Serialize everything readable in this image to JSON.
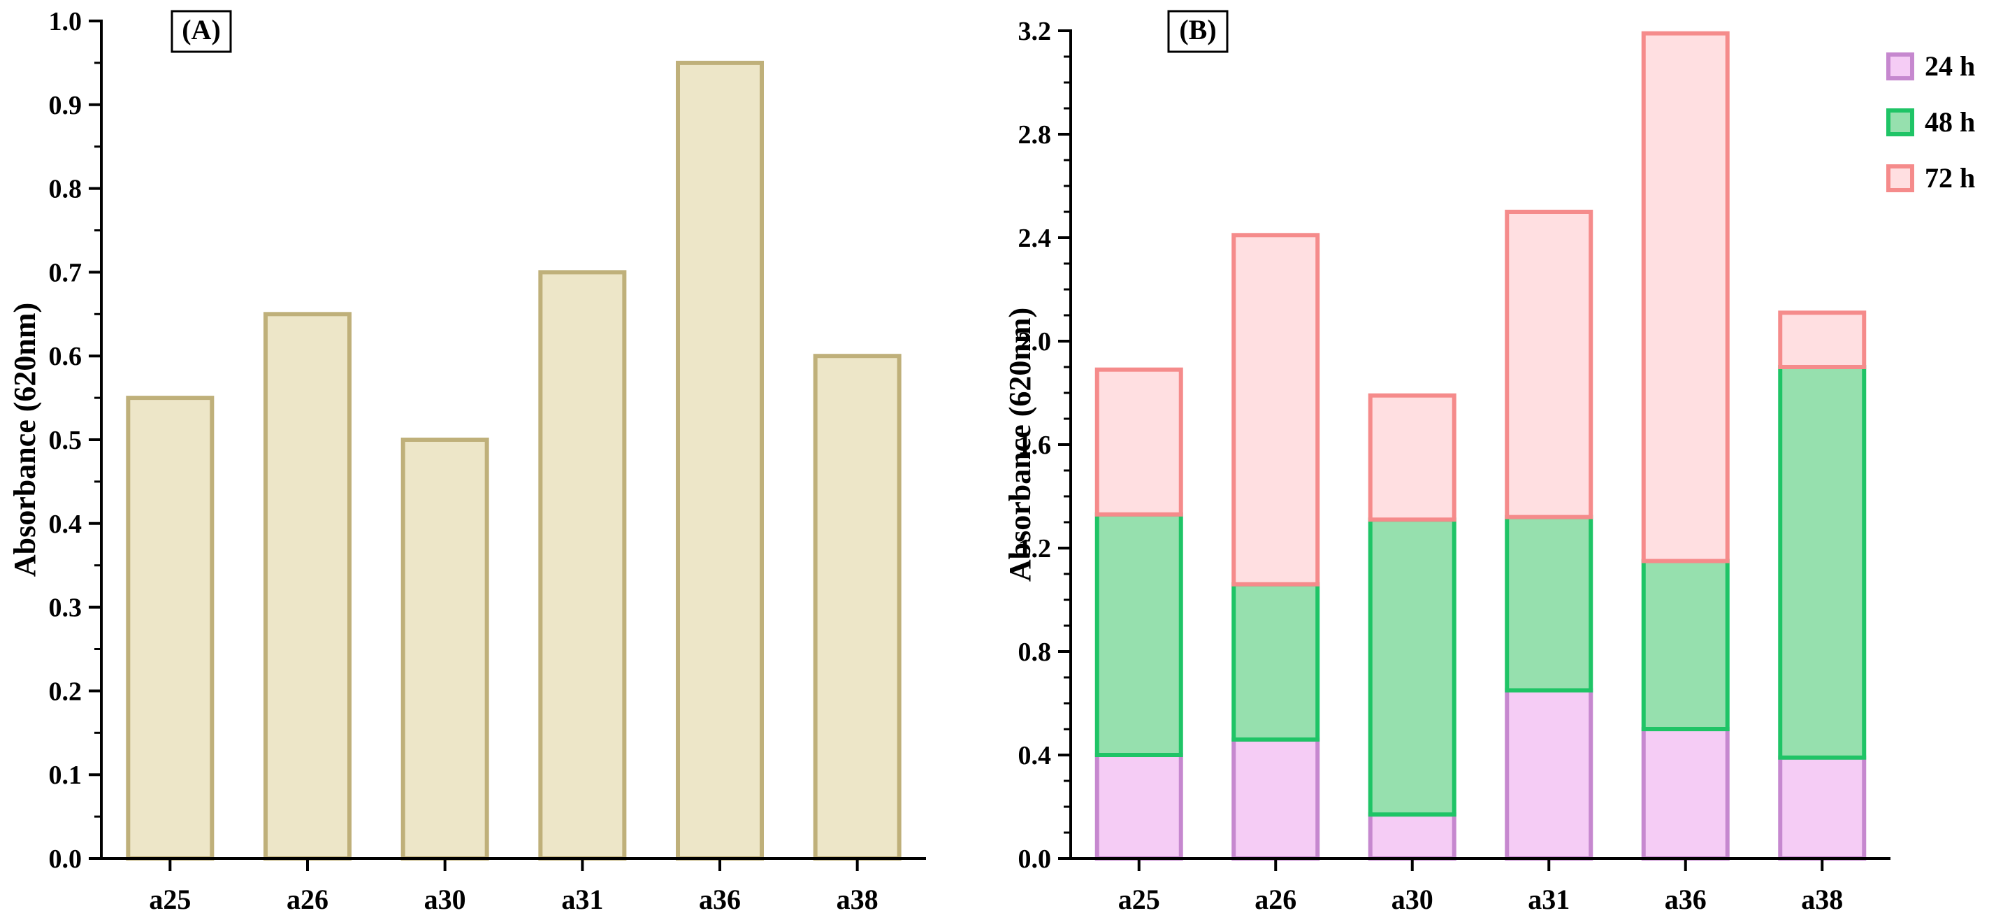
{
  "chart_data": [
    {
      "panel": "(A)",
      "type": "bar",
      "categories": [
        "a25",
        "a26",
        "a30",
        "a31",
        "a36",
        "a38"
      ],
      "values": [
        0.55,
        0.65,
        0.5,
        0.7,
        0.95,
        0.6
      ],
      "ylabel": "Absorbance (620nm)",
      "xlabel": "",
      "ylim": [
        0,
        1.0
      ],
      "yticks": [
        "0.0",
        "0.1",
        "0.2",
        "0.3",
        "0.4",
        "0.5",
        "0.6",
        "0.7",
        "0.8",
        "0.9",
        "1.0"
      ],
      "colors": {
        "fill": "#ede6c8",
        "stroke": "#bfb07a"
      }
    },
    {
      "panel": "(B)",
      "type": "bar",
      "stacked": true,
      "categories": [
        "a25",
        "a26",
        "a30",
        "a31",
        "a36",
        "a38"
      ],
      "series": [
        {
          "name": "24 h",
          "values": [
            0.4,
            0.46,
            0.17,
            0.65,
            0.5,
            0.39
          ],
          "fill": "#f5ccf5",
          "stroke": "#c688cf"
        },
        {
          "name": "48 h",
          "values": [
            0.93,
            0.6,
            1.14,
            0.67,
            0.65,
            1.51
          ],
          "fill": "#96e0ae",
          "stroke": "#1fc466"
        },
        {
          "name": "72 h",
          "values": [
            0.56,
            1.35,
            0.48,
            1.18,
            2.04,
            0.21
          ],
          "fill": "#ffdfe1",
          "stroke": "#f58b8b"
        }
      ],
      "ylabel": "Absorbance (620nm)",
      "xlabel": "",
      "ylim": [
        0,
        3.2
      ],
      "yticks": [
        "0.0",
        "0.4",
        "0.8",
        "1.2",
        "1.6",
        "2.0",
        "2.4",
        "2.8",
        "3.2"
      ],
      "legend_position": "top-right"
    }
  ]
}
